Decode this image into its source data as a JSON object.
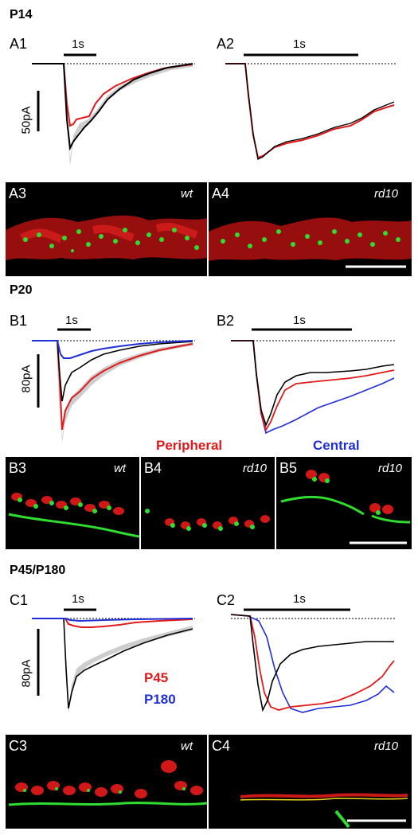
{
  "colors": {
    "wt": "#000000",
    "rd10_peripheral": "#e0191b",
    "central": "#1f2fd6",
    "sem": "#bfbfbf",
    "green": "#2fdc2f",
    "red": "#e01a1a"
  },
  "sections": {
    "p14": "P14",
    "p20": "P20",
    "p45": "P45/P180"
  },
  "labels": {
    "a1": "A1",
    "a2": "A2",
    "a3": "A3",
    "a4": "A4",
    "b1": "B1",
    "b2": "B2",
    "b3": "B3",
    "b4": "B4",
    "b5": "B5",
    "c1": "C1",
    "c2": "C2",
    "c3": "C3",
    "c4": "C4"
  },
  "stim": {
    "a1": "1s",
    "a2": "1s",
    "b1": "1s",
    "b2": "1s",
    "c1": "1s",
    "c2": "1s"
  },
  "scalebars": {
    "a": "50pA",
    "b": "80pA",
    "c": "80pA"
  },
  "genotypes": {
    "a3": "wt",
    "a4": "rd10",
    "b3": "wt",
    "b4": "rd10",
    "b5": "rd10",
    "c3": "wt",
    "c4": "rd10"
  },
  "legend": {
    "peripheral": "Peripheral",
    "central": "Central",
    "p45": "P45",
    "p180": "P180"
  }
}
